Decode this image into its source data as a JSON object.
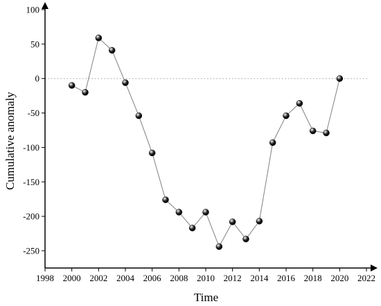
{
  "chart_data": {
    "type": "line",
    "xlabel": "Time",
    "ylabel": "Cumulative anomaly",
    "xlim": [
      1998,
      2022
    ],
    "ylim": [
      -275,
      100
    ],
    "x_ticks": [
      1998,
      2000,
      2002,
      2004,
      2006,
      2008,
      2010,
      2012,
      2014,
      2016,
      2018,
      2020,
      2022
    ],
    "y_ticks": [
      -250,
      -200,
      -150,
      -100,
      -50,
      0,
      50,
      100
    ],
    "reference_line": {
      "y": 0,
      "style": "dotted"
    },
    "grid": false,
    "legend": "none",
    "marker": "black-sphere",
    "line_color": "#808080",
    "series": [
      {
        "x": [
          2000,
          2001,
          2002,
          2003,
          2004,
          2005,
          2006,
          2007,
          2008,
          2009,
          2010,
          2011,
          2012,
          2013,
          2014,
          2015,
          2016,
          2017,
          2018,
          2019,
          2020
        ],
        "values": [
          -10,
          -20,
          59,
          41,
          -6,
          -54,
          -108,
          -176,
          -194,
          -217,
          -194,
          -244,
          -208,
          -233,
          -207,
          -93,
          -54,
          -36,
          -76,
          -79,
          0
        ]
      }
    ]
  }
}
